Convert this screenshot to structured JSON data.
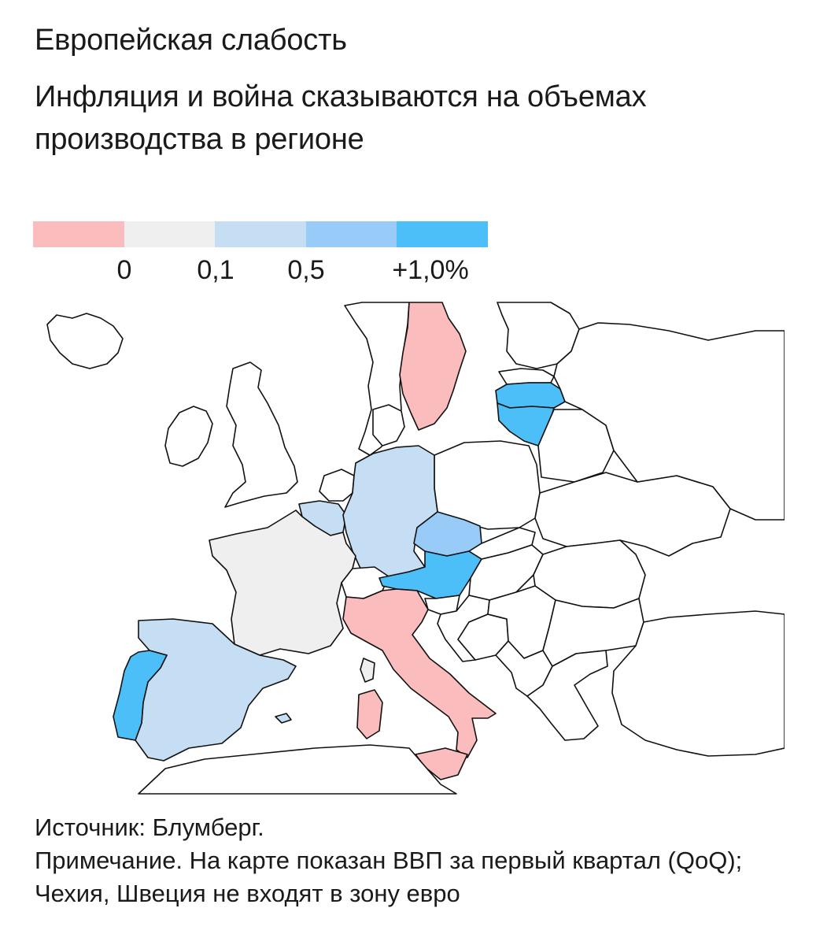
{
  "header": {
    "title": "Европейская слабость",
    "subtitle": "Инфляция и война сказываются на объемах производства в регионе"
  },
  "legend": {
    "colors": [
      "#fbbcbe",
      "#efefef",
      "#c6def3",
      "#98cbf7",
      "#4cbff9"
    ],
    "labels": [
      "0",
      "0,1",
      "0,5",
      "+1,0%"
    ]
  },
  "map": {
    "regions": [
      {
        "name": "Sweden",
        "bin": 0,
        "color": "#fbbcbe"
      },
      {
        "name": "Italy",
        "bin": 0,
        "color": "#fbbcbe"
      },
      {
        "name": "France",
        "bin": 1,
        "color": "#efefef"
      },
      {
        "name": "Germany",
        "bin": 2,
        "color": "#c6def3"
      },
      {
        "name": "Spain",
        "bin": 2,
        "color": "#c6def3"
      },
      {
        "name": "Belgium",
        "bin": 2,
        "color": "#c6def3"
      },
      {
        "name": "Czechia",
        "bin": 3,
        "color": "#98cbf7"
      },
      {
        "name": "Austria",
        "bin": 4,
        "color": "#4cbff9"
      },
      {
        "name": "Portugal",
        "bin": 4,
        "color": "#4cbff9"
      },
      {
        "name": "Latvia",
        "bin": 4,
        "color": "#4cbff9"
      },
      {
        "name": "Lithuania",
        "bin": 4,
        "color": "#4cbff9"
      }
    ],
    "no_data_color": "#ffffff"
  },
  "footer": {
    "source": "Источник: Блумберг.",
    "note": "Примечание. На карте показан ВВП за первый квартал (QoQ); Чехия, Швеция не входят в зону евро"
  }
}
